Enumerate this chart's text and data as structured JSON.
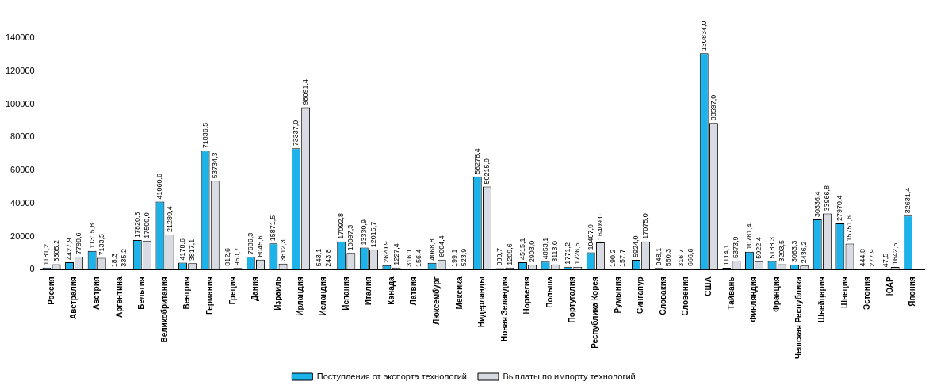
{
  "chart_data": {
    "type": "bar",
    "categories": [
      "Россия",
      "Австралия",
      "Австрия",
      "Аргентина",
      "Бельгия",
      "Великобритания",
      "Венгрия",
      "Германия",
      "Греция",
      "Дания",
      "Израиль",
      "Ирландия",
      "Исландия",
      "Испания",
      "Италия",
      "Канада",
      "Латвия",
      "Люксембург",
      "Мексика",
      "Нидерланды",
      "Новая Зеландия",
      "Норвегия",
      "Польша",
      "Португалия",
      "Республика Корея",
      "Румыния",
      "Сингапур",
      "Словакия",
      "Словения",
      "США",
      "Тайвань",
      "Финляндия",
      "Франция",
      "Чешская Республика",
      "Швейцария",
      "Швеция",
      "Эстония",
      "ЮАР",
      "Япония"
    ],
    "series": [
      {
        "name": "Поступления от экспорта технологий",
        "color": "#1bb3ea",
        "values": [
          1181.2,
          4427.9,
          11315.8,
          18.3,
          17820.5,
          41060.6,
          4178.6,
          71836.5,
          812.6,
          7686.3,
          15871.5,
          73337.0,
          543.1,
          17092.8,
          13330.9,
          2620.9,
          316.1,
          4068.8,
          199.1,
          56278.4,
          880.7,
          4515.1,
          4853.1,
          1771.2,
          10407.9,
          190.2,
          5924.0,
          948.1,
          316.7,
          130834.0,
          1114.1,
          10781.4,
          5188.3,
          3063.3,
          30336.4,
          27970.4,
          444.8,
          47.5,
          32631.4
        ],
        "value_labels": [
          "1181,2",
          "4427,9",
          "11315,8",
          "18,3",
          "17820,5",
          "41060,6",
          "4178,6",
          "71836,5",
          "812,6",
          "7686,3",
          "15871,5",
          "73337,0",
          "543,1",
          "17092,8",
          "13330,9",
          "2620,9",
          "316,1",
          "4068,8",
          "199,1",
          "56278,4",
          "880,7",
          "4515,1",
          "4853,1",
          "1771,2",
          "10407,9",
          "190,2",
          "5924,0",
          "948,1",
          "316,7",
          "130834,0",
          "1114,1",
          "10781,4",
          "5188,3",
          "3063,3",
          "30336,4",
          "27970,4",
          "444,8",
          "47,5",
          "32631,4"
        ]
      },
      {
        "name": "Выплаты по импорту технологий",
        "color": "#d8dce2",
        "values": [
          3305.2,
          7798.6,
          7133.5,
          335.2,
          17500.0,
          21280.4,
          3817.1,
          53734.3,
          950.7,
          6045.6,
          3612.3,
          98091.4,
          243.8,
          10097.3,
          12015.7,
          1227.4,
          156.4,
          6004.4,
          523.9,
          50215.9,
          1209.6,
          2903.0,
          3113.0,
          1726.5,
          16409.0,
          157.7,
          17075.0,
          550.3,
          666.6,
          88597.0,
          5373.9,
          5022.4,
          3293.5,
          2436.2,
          33966.8,
          15751.6,
          277.9,
          1642.5,
          null
        ],
        "value_labels": [
          "3305,2",
          "7798,6",
          "7133,5",
          "335,2",
          "17500,0",
          "21280,4",
          "3817,1",
          "53734,3",
          "950,7",
          "6045,6",
          "3612,3",
          "98091,4",
          "243,8",
          "10097,3",
          "12015,7",
          "1227,4",
          "156,4",
          "6004,4",
          "523,9",
          "50215,9",
          "1209,6",
          "2903,0",
          "3113,0",
          "1726,5",
          "16409,0",
          "157,7",
          "17075,0",
          "550,3",
          "666,6",
          "88597,0",
          "5373,9",
          "5022,4",
          "3293,5",
          "2436,2",
          "33966,8",
          "15751,6",
          "277,9",
          "1642,5",
          null
        ]
      }
    ],
    "ylim": [
      0,
      140000
    ],
    "yticks": [
      0,
      20000,
      40000,
      60000,
      80000,
      100000,
      120000,
      140000
    ],
    "grid": false,
    "legend": "bottom"
  }
}
